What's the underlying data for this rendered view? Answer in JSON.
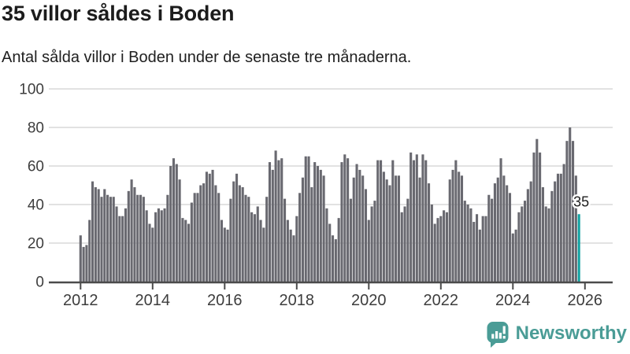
{
  "header": {
    "title": "35 villor såldes i Boden",
    "subtitle": "Antal sålda villor i Boden under de senaste tre månaderna."
  },
  "chart_data": {
    "type": "bar",
    "title": "35 villor såldes i Boden",
    "subtitle": "Antal sålda villor i Boden under de senaste tre månaderna.",
    "x_start_year": 2012,
    "x_step_months": 1,
    "values": [
      24,
      18,
      19,
      32,
      52,
      49,
      48,
      44,
      48,
      45,
      44,
      44,
      39,
      34,
      34,
      38,
      47,
      53,
      49,
      45,
      45,
      44,
      37,
      30,
      28,
      36,
      38,
      37,
      38,
      45,
      60,
      64,
      61,
      53,
      33,
      32,
      30,
      41,
      46,
      46,
      50,
      51,
      57,
      56,
      58,
      50,
      46,
      32,
      28,
      27,
      43,
      52,
      56,
      50,
      49,
      45,
      44,
      36,
      35,
      39,
      32,
      28,
      44,
      62,
      58,
      68,
      63,
      64,
      43,
      32,
      27,
      24,
      34,
      46,
      54,
      65,
      65,
      49,
      62,
      60,
      58,
      55,
      38,
      30,
      24,
      22,
      33,
      62,
      66,
      64,
      43,
      54,
      61,
      58,
      55,
      48,
      32,
      39,
      42,
      63,
      63,
      57,
      53,
      50,
      63,
      55,
      55,
      36,
      39,
      43,
      67,
      63,
      66,
      54,
      66,
      63,
      51,
      40,
      30,
      33,
      34,
      37,
      36,
      53,
      58,
      63,
      57,
      55,
      42,
      40,
      38,
      31,
      35,
      27,
      34,
      34,
      45,
      43,
      51,
      54,
      64,
      55,
      50,
      46,
      25,
      27,
      36,
      39,
      42,
      48,
      52,
      67,
      74,
      67,
      49,
      39,
      38,
      47,
      52,
      56,
      56,
      61,
      73,
      80,
      73,
      55,
      35
    ],
    "highlight_last": true,
    "highlight_value_label": "35",
    "ylim": [
      0,
      100
    ],
    "y_ticks": [
      0,
      20,
      40,
      60,
      80,
      100
    ],
    "x_tick_years": [
      2012,
      2014,
      2016,
      2018,
      2020,
      2022,
      2024,
      2026
    ],
    "grid": true,
    "legend": "none",
    "bar_color": "#696970",
    "highlight_color": "#12a2a2",
    "grid_color": "#e2e2e2",
    "axis_color": "#4b4b4b",
    "tick_label_color": "#3d3d3d",
    "annotation_color": "#1d1d1d"
  },
  "footer": {
    "brand": "Newsworthy",
    "brand_color": "#4a9c96",
    "logo_icon": "newsworthy-speech-bubble-bar-chart-icon"
  }
}
